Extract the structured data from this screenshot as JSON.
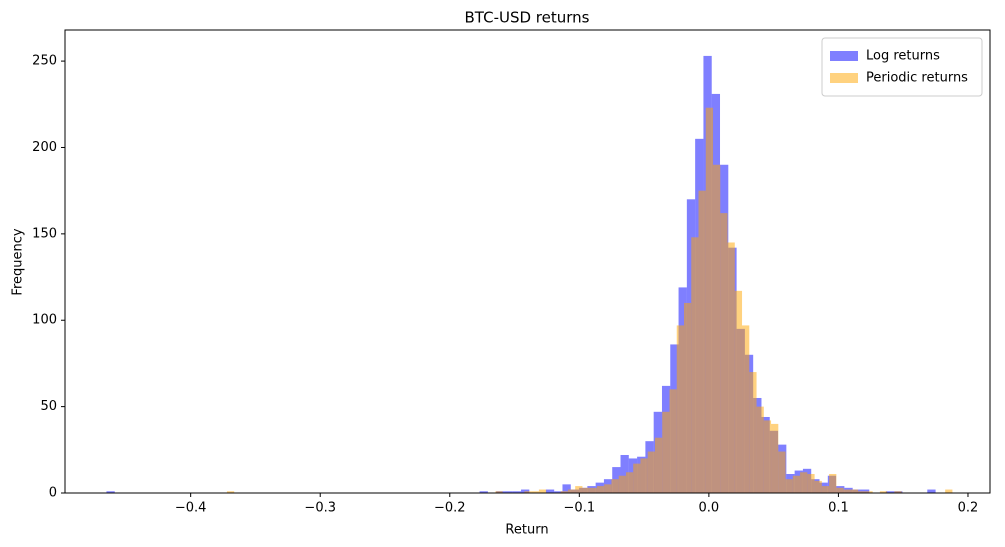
{
  "chart_data": {
    "type": "histogram",
    "title": "BTC-USD returns",
    "x_label": "Return",
    "y_label": "Frequency",
    "xlim": [
      -0.497,
      0.217
    ],
    "ylim": [
      0,
      268
    ],
    "xticks": [
      {
        "value": -0.4,
        "label": "−0.4"
      },
      {
        "value": -0.3,
        "label": "−0.3"
      },
      {
        "value": -0.2,
        "label": "−0.2"
      },
      {
        "value": -0.1,
        "label": "−0.1"
      },
      {
        "value": 0,
        "label": "0.0"
      },
      0.1,
      0.2
    ],
    "yticks": [
      0,
      50,
      100,
      150,
      200,
      250
    ],
    "grid": false,
    "legend": "upper right",
    "series": [
      {
        "name": "Log returns",
        "color": "#0000ff",
        "bins": [
          -0.465,
          -0.4586,
          -0.4522,
          -0.4458,
          -0.4394,
          -0.433,
          -0.4266,
          -0.4202,
          -0.4138,
          -0.4074,
          -0.401,
          -0.3946,
          -0.3882,
          -0.3818,
          -0.3754,
          -0.369,
          -0.3626,
          -0.3562,
          -0.3498,
          -0.3434,
          -0.337,
          -0.3306,
          -0.3242,
          -0.3178,
          -0.3114,
          -0.305,
          -0.2986,
          -0.2922,
          -0.2858,
          -0.2794,
          -0.273,
          -0.2666,
          -0.2602,
          -0.2538,
          -0.2474,
          -0.241,
          -0.2346,
          -0.2282,
          -0.2218,
          -0.2154,
          -0.209,
          -0.2026,
          -0.1962,
          -0.1898,
          -0.1834,
          -0.177,
          -0.1706,
          -0.1642,
          -0.1578,
          -0.1514,
          -0.145,
          -0.1386,
          -0.1322,
          -0.1258,
          -0.1194,
          -0.113,
          -0.1066,
          -0.1002,
          -0.0938,
          -0.0874,
          -0.081,
          -0.0746,
          -0.0682,
          -0.0618,
          -0.0554,
          -0.049,
          -0.0426,
          -0.0362,
          -0.0298,
          -0.0234,
          -0.017,
          -0.0106,
          -0.0042,
          0.0022,
          0.0086,
          0.015,
          0.0214,
          0.0278,
          0.0342,
          0.0406,
          0.047,
          0.0534,
          0.0598,
          0.0662,
          0.0726,
          0.079,
          0.0854,
          0.0918,
          0.0982,
          0.1046,
          0.111,
          0.1174,
          0.1238,
          0.1302,
          0.1366,
          0.143,
          0.1494,
          0.1558,
          0.1622,
          0.1686,
          0.175
        ],
        "values": [
          1,
          0,
          0,
          0,
          0,
          0,
          0,
          0,
          0,
          0,
          0,
          0,
          0,
          0,
          0,
          0,
          0,
          0,
          0,
          0,
          0,
          0,
          0,
          0,
          0,
          0,
          0,
          0,
          0,
          0,
          0,
          0,
          0,
          0,
          0,
          0,
          0,
          0,
          0,
          0,
          0,
          0,
          0,
          0,
          0,
          1,
          0,
          1,
          1,
          1,
          2,
          0,
          0,
          2,
          1,
          5,
          2,
          3,
          4,
          6,
          8,
          15,
          22,
          20,
          21,
          30,
          47,
          62,
          86,
          119,
          170,
          205,
          253,
          231,
          190,
          142,
          95,
          80,
          55,
          44,
          36,
          28,
          11,
          13,
          14,
          8,
          6,
          10,
          4,
          3,
          2,
          2,
          0,
          0,
          1,
          1,
          0,
          0,
          0,
          2
        ]
      },
      {
        "name": "Periodic returns",
        "color": "#ffa500",
        "bins": [
          -0.372,
          -0.3664,
          -0.3608,
          -0.3552,
          -0.3496,
          -0.344,
          -0.3384,
          -0.3328,
          -0.3272,
          -0.3216,
          -0.316,
          -0.3104,
          -0.3048,
          -0.2992,
          -0.2936,
          -0.288,
          -0.2824,
          -0.2768,
          -0.2712,
          -0.2656,
          -0.26,
          -0.2544,
          -0.2488,
          -0.2432,
          -0.2376,
          -0.232,
          -0.2264,
          -0.2208,
          -0.2152,
          -0.2096,
          -0.204,
          -0.1984,
          -0.1928,
          -0.1872,
          -0.1816,
          -0.176,
          -0.1704,
          -0.1648,
          -0.1592,
          -0.1536,
          -0.148,
          -0.1424,
          -0.1368,
          -0.1312,
          -0.1256,
          -0.12,
          -0.1144,
          -0.1088,
          -0.1032,
          -0.0976,
          -0.092,
          -0.0864,
          -0.0808,
          -0.0752,
          -0.0696,
          -0.064,
          -0.0584,
          -0.0528,
          -0.0472,
          -0.0416,
          -0.036,
          -0.0304,
          -0.0248,
          -0.0192,
          -0.0136,
          -0.008,
          -0.0024,
          0.0032,
          0.0088,
          0.0144,
          0.02,
          0.0256,
          0.0312,
          0.0368,
          0.0424,
          0.048,
          0.0536,
          0.0592,
          0.0648,
          0.0704,
          0.076,
          0.0816,
          0.0872,
          0.0928,
          0.0984,
          0.104,
          0.1096,
          0.1152,
          0.1208,
          0.1264,
          0.132,
          0.1376,
          0.1432,
          0.1488,
          0.1544,
          0.16,
          0.1656,
          0.1712,
          0.1768,
          0.1824,
          0.188
        ],
        "values": [
          1,
          0,
          0,
          0,
          0,
          0,
          0,
          0,
          0,
          0,
          0,
          0,
          0,
          0,
          0,
          0,
          0,
          0,
          0,
          0,
          0,
          0,
          0,
          0,
          0,
          0,
          0,
          0,
          0,
          0,
          0,
          0,
          0,
          0,
          0,
          0,
          0,
          1,
          0,
          0,
          0,
          1,
          1,
          2,
          0,
          0,
          1,
          2,
          4,
          3,
          3,
          4,
          5,
          8,
          10,
          12,
          17,
          20,
          24,
          32,
          47,
          60,
          97,
          110,
          148,
          175,
          223,
          190,
          162,
          145,
          117,
          97,
          70,
          50,
          42,
          40,
          24,
          8,
          10,
          12,
          11,
          7,
          4,
          11,
          3,
          2,
          2,
          1,
          1,
          0,
          1,
          0,
          1,
          0,
          0,
          0,
          0,
          0,
          0,
          2
        ]
      }
    ]
  }
}
